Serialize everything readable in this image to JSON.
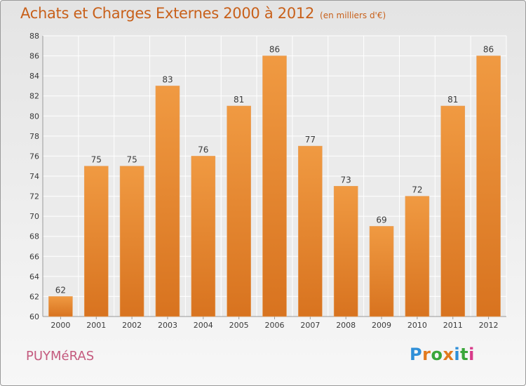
{
  "chart_data": {
    "type": "bar",
    "title": "Achats et Charges Externes 2000 à 2012",
    "subtitle": "(en milliers d'€)",
    "categories": [
      "2000",
      "2001",
      "2002",
      "2003",
      "2004",
      "2005",
      "2006",
      "2007",
      "2008",
      "2009",
      "2010",
      "2011",
      "2012"
    ],
    "values": [
      62,
      75,
      75,
      83,
      76,
      81,
      86,
      77,
      73,
      69,
      72,
      81,
      86
    ],
    "ylim": [
      60,
      88
    ],
    "yticks": [
      60,
      62,
      64,
      66,
      68,
      70,
      72,
      74,
      76,
      78,
      80,
      82,
      84,
      86,
      88
    ],
    "xlabel": "",
    "ylabel": "",
    "grid": true,
    "bar_color": "#f09a42",
    "bar_color_dark": "#d8731f"
  },
  "footer": {
    "commune": "PUYMéRAS",
    "logo_letters": [
      "P",
      "r",
      "o",
      "x",
      "i",
      "t",
      "i"
    ],
    "logo_colors": [
      "#2f8fd8",
      "#e27a1e",
      "#3aa63a",
      "#e27a1e",
      "#2f8fd8",
      "#3aa63a",
      "#d83a8a"
    ]
  }
}
